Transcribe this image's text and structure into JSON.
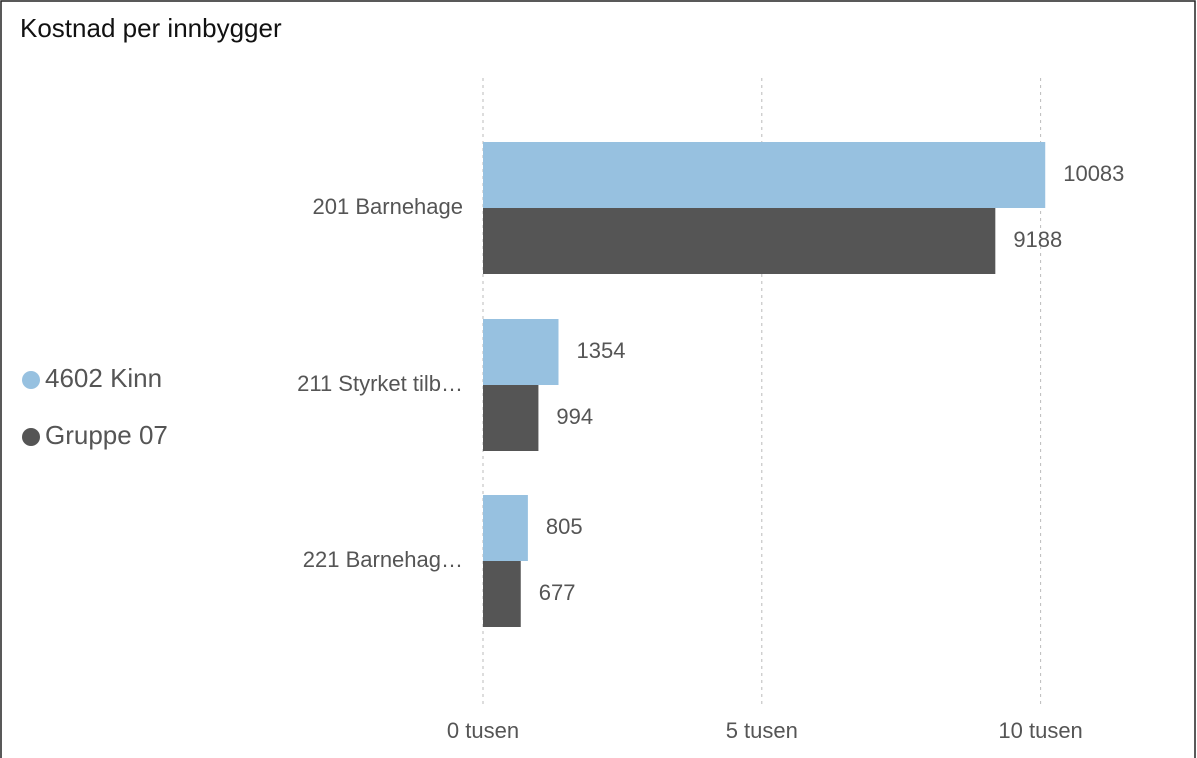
{
  "chart_data": {
    "type": "bar",
    "orientation": "horizontal",
    "title": "Kostnad per innbygger",
    "categories": [
      "201 Barnehage",
      "211 Styrket tilb…",
      "221 Barnehag…"
    ],
    "series": [
      {
        "name": "4602 Kinn",
        "color": "#97c1e0",
        "values": [
          10083,
          1354,
          805
        ]
      },
      {
        "name": "Gruppe 07",
        "color": "#555555",
        "values": [
          9188,
          994,
          677
        ]
      }
    ],
    "xlim": [
      0,
      12500
    ],
    "xticks": [
      {
        "value": 0,
        "label": "0 tusen"
      },
      {
        "value": 5000,
        "label": "5 tusen"
      },
      {
        "value": 10000,
        "label": "10 tusen"
      }
    ],
    "grid": true,
    "legend": "left"
  }
}
